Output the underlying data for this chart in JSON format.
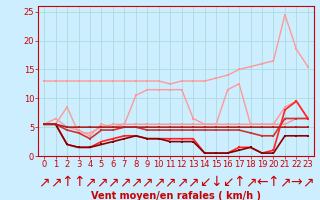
{
  "x": [
    0,
    1,
    2,
    3,
    4,
    5,
    6,
    7,
    8,
    9,
    10,
    11,
    12,
    13,
    14,
    15,
    16,
    17,
    18,
    19,
    20,
    21,
    22,
    23
  ],
  "series": [
    {
      "y": [
        13,
        13,
        13,
        13,
        13,
        13,
        13,
        13,
        13,
        13,
        13,
        12.5,
        13,
        13,
        13,
        13.5,
        14,
        15,
        15.5,
        16,
        16.5,
        24.5,
        18.5,
        15.5
      ],
      "color": "#ff9999",
      "lw": 1.0
    },
    {
      "y": [
        5.5,
        5.5,
        8.5,
        4,
        4,
        5,
        5.5,
        5.5,
        10.5,
        11.5,
        11.5,
        11.5,
        11.5,
        6.5,
        5.5,
        5.5,
        11.5,
        12.5,
        5.5,
        5.5,
        5.5,
        8.5,
        9.5,
        6.5
      ],
      "color": "#ff9999",
      "lw": 1.0
    },
    {
      "y": [
        5.5,
        6.5,
        5,
        4.5,
        3.5,
        5.5,
        5,
        5.5,
        5.5,
        5.5,
        5.5,
        5.5,
        5.5,
        5.5,
        5.5,
        5.5,
        5.5,
        5.5,
        5.5,
        5.5,
        5.5,
        5.5,
        6.5,
        6.5
      ],
      "color": "#ff9999",
      "lw": 1.0
    },
    {
      "y": [
        5.5,
        5.5,
        4.5,
        4,
        3,
        4.5,
        4.5,
        5,
        5,
        4.5,
        4.5,
        4.5,
        4.5,
        4.5,
        4.5,
        4.5,
        4.5,
        4.5,
        4,
        3.5,
        3.5,
        6.5,
        6.5,
        6.5
      ],
      "color": "#cc3333",
      "lw": 1.2
    },
    {
      "y": [
        5.5,
        5.5,
        2,
        1.5,
        1.5,
        2.5,
        3,
        3.5,
        3.5,
        3,
        3,
        3,
        3,
        3,
        0.5,
        0.5,
        0.5,
        1.5,
        1.5,
        0.5,
        1,
        8,
        9.5,
        6.5
      ],
      "color": "#ff2222",
      "lw": 1.2
    },
    {
      "y": [
        5.5,
        5.5,
        2,
        1.5,
        1.5,
        2,
        2.5,
        3,
        3.5,
        3,
        3,
        2.5,
        2.5,
        2.5,
        0.5,
        0.5,
        0.5,
        1,
        1.5,
        0.5,
        0.5,
        3.5,
        3.5,
        3.5
      ],
      "color": "#880000",
      "lw": 1.2
    },
    {
      "y": [
        5.5,
        5.5,
        5,
        5,
        5,
        5,
        5,
        5,
        5,
        5,
        5,
        5,
        5,
        5,
        5,
        5,
        5,
        5,
        5,
        5,
        5,
        5,
        5,
        5
      ],
      "color": "#aa2222",
      "lw": 1.2
    }
  ],
  "arrow_chars": [
    "↗",
    "↗",
    "↑",
    "↑",
    "↗",
    "↗",
    "↗",
    "↗",
    "↗",
    "↗",
    "↗",
    "↗",
    "↗",
    "↗",
    "↙",
    "↓",
    "↙",
    "↑",
    "↗",
    "←",
    "↑",
    "↗",
    "→",
    "↗"
  ],
  "xlabel": "Vent moyen/en rafales ( km/h )",
  "ylim": [
    0,
    26
  ],
  "xlim": [
    -0.5,
    23.5
  ],
  "yticks": [
    0,
    5,
    10,
    15,
    20,
    25
  ],
  "xticks": [
    0,
    1,
    2,
    3,
    4,
    5,
    6,
    7,
    8,
    9,
    10,
    11,
    12,
    13,
    14,
    15,
    16,
    17,
    18,
    19,
    20,
    21,
    22,
    23
  ],
  "bg_color": "#cceeff",
  "grid_color": "#aadddd",
  "xlabel_color": "#cc0000",
  "tick_color": "#cc0000",
  "xlabel_fontsize": 7,
  "tick_fontsize": 6,
  "arrow_fontsize": 5
}
